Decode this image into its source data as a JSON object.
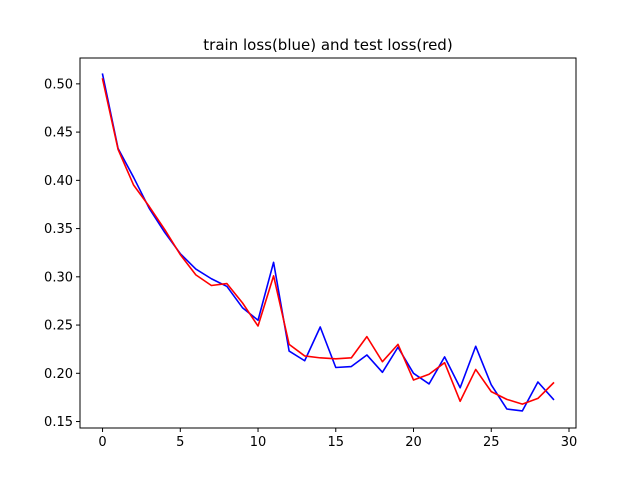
{
  "chart_data": {
    "type": "line",
    "title": "train loss(blue) and test loss(red)",
    "xlabel": "",
    "ylabel": "",
    "xlim": [
      -1.45,
      30.45
    ],
    "ylim": [
      0.1433,
      0.5268
    ],
    "xticks": [
      0,
      5,
      10,
      15,
      20,
      25,
      30
    ],
    "xtick_labels": [
      "0",
      "5",
      "10",
      "15",
      "20",
      "25",
      "30"
    ],
    "yticks": [
      0.15,
      0.2,
      0.25,
      0.3,
      0.35,
      0.4,
      0.45,
      0.5
    ],
    "ytick_labels": [
      "0.15",
      "0.20",
      "0.25",
      "0.30",
      "0.35",
      "0.40",
      "0.45",
      "0.50"
    ],
    "grid": false,
    "x": [
      0,
      1,
      2,
      3,
      4,
      5,
      6,
      7,
      8,
      9,
      10,
      11,
      12,
      13,
      14,
      15,
      16,
      17,
      18,
      19,
      20,
      21,
      22,
      23,
      24,
      25,
      26,
      27,
      28,
      29
    ],
    "series": [
      {
        "color": "#0000ff",
        "values": [
          0.51,
          0.433,
          0.403,
          0.371,
          0.346,
          0.324,
          0.308,
          0.298,
          0.29,
          0.268,
          0.255,
          0.315,
          0.223,
          0.213,
          0.248,
          0.206,
          0.207,
          0.219,
          0.201,
          0.227,
          0.2,
          0.189,
          0.217,
          0.185,
          0.228,
          0.188,
          0.163,
          0.161,
          0.191,
          0.173
        ]
      },
      {
        "color": "#ff0000",
        "values": [
          0.505,
          0.432,
          0.395,
          0.373,
          0.349,
          0.323,
          0.302,
          0.291,
          0.293,
          0.273,
          0.249,
          0.301,
          0.23,
          0.218,
          0.216,
          0.215,
          0.216,
          0.238,
          0.212,
          0.23,
          0.193,
          0.199,
          0.211,
          0.171,
          0.204,
          0.181,
          0.173,
          0.168,
          0.174,
          0.19
        ]
      }
    ]
  }
}
